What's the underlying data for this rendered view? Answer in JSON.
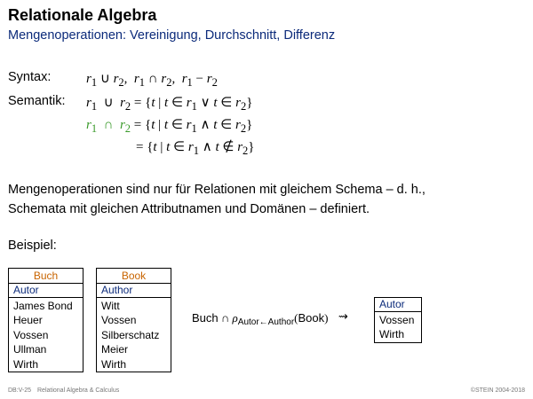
{
  "header": {
    "title": "Relationale Algebra",
    "subtitle": "Mengenoperationen: Vereinigung, Durchschnitt, Differenz"
  },
  "syntax": {
    "label": "Syntax:"
  },
  "semantik": {
    "label": "Semantik:"
  },
  "paragraph": {
    "line1": "Mengenoperationen sind nur für Relationen mit gleichem Schema – d. h.,",
    "line2": "Schemata mit gleichen Attributnamen und Domänen – definiert."
  },
  "beispiel": {
    "label": "Beispiel:"
  },
  "tables": {
    "buch": {
      "name": "Buch",
      "attribute": "Autor",
      "rows": [
        "James Bond",
        "Heuer",
        "Vossen",
        "Ullman",
        "Wirth"
      ]
    },
    "book": {
      "name": "Book",
      "attribute": "Author",
      "rows": [
        "Witt",
        "Vossen",
        "Silberschatz",
        "Meier",
        "Wirth"
      ]
    },
    "result": {
      "attribute": "Autor",
      "rows": [
        "Vossen",
        "Wirth"
      ]
    }
  },
  "expression": {
    "left": "Buch",
    "rho_sub": "Autor←Author",
    "arg": "Book"
  },
  "footer": {
    "left": "DB:V-25",
    "center": "Relational Algebra & Calculus",
    "right": "©STEIN 2004-2018"
  },
  "colors": {
    "title_blue": "#0b2a7a",
    "relation_orange": "#c86400",
    "highlight_green": "#3a9a2a"
  }
}
